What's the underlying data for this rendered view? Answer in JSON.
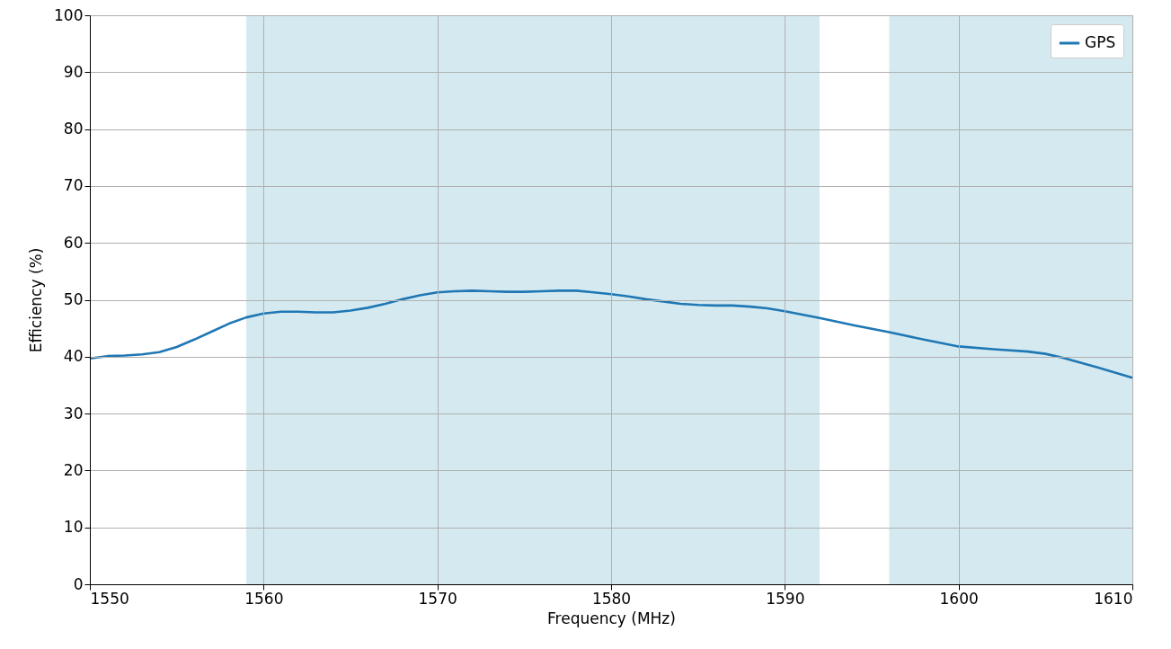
{
  "chart_data": {
    "type": "line",
    "xlabel": "Frequency (MHz)",
    "ylabel": "Efficiency (%)",
    "xlim": [
      1550,
      1610
    ],
    "xticks": [
      1550,
      1560,
      1570,
      1580,
      1590,
      1600,
      1610
    ],
    "ylim": [
      0,
      100
    ],
    "yticks": [
      0,
      10,
      20,
      30,
      40,
      50,
      60,
      70,
      80,
      90,
      100
    ],
    "grid": true,
    "legend": "top right",
    "marker": "none",
    "line_style": "solid",
    "bands": [
      {
        "axis": "x",
        "from": 1559,
        "to": 1592,
        "color": "#d5eaf0"
      },
      {
        "axis": "x",
        "from": 1596,
        "to": 1610,
        "color": "#d5eaf0"
      }
    ],
    "series": [
      {
        "name": "GPS",
        "color": "#1f77b4",
        "x": [
          1550,
          1551,
          1552,
          1553,
          1554,
          1555,
          1556,
          1557,
          1558,
          1559,
          1560,
          1561,
          1562,
          1563,
          1564,
          1565,
          1566,
          1567,
          1568,
          1569,
          1570,
          1571,
          1572,
          1573,
          1574,
          1575,
          1576,
          1577,
          1578,
          1579,
          1580,
          1581,
          1582,
          1583,
          1584,
          1585,
          1586,
          1587,
          1588,
          1589,
          1590,
          1592,
          1594,
          1596,
          1598,
          1600,
          1602,
          1604,
          1605,
          1606,
          1608,
          1610
        ],
        "values": [
          39.7,
          40.1,
          40.2,
          40.4,
          40.8,
          41.7,
          43.0,
          44.4,
          45.8,
          46.9,
          47.6,
          47.9,
          47.9,
          47.8,
          47.8,
          48.1,
          48.6,
          49.3,
          50.1,
          50.8,
          51.3,
          51.5,
          51.6,
          51.5,
          51.4,
          51.4,
          51.5,
          51.6,
          51.6,
          51.3,
          51.0,
          50.6,
          50.1,
          49.7,
          49.3,
          49.1,
          49.0,
          49.0,
          48.8,
          48.5,
          48.0,
          46.8,
          45.5,
          44.3,
          43.0,
          41.8,
          41.3,
          40.9,
          40.5,
          39.8,
          38.1,
          36.3
        ]
      }
    ]
  }
}
